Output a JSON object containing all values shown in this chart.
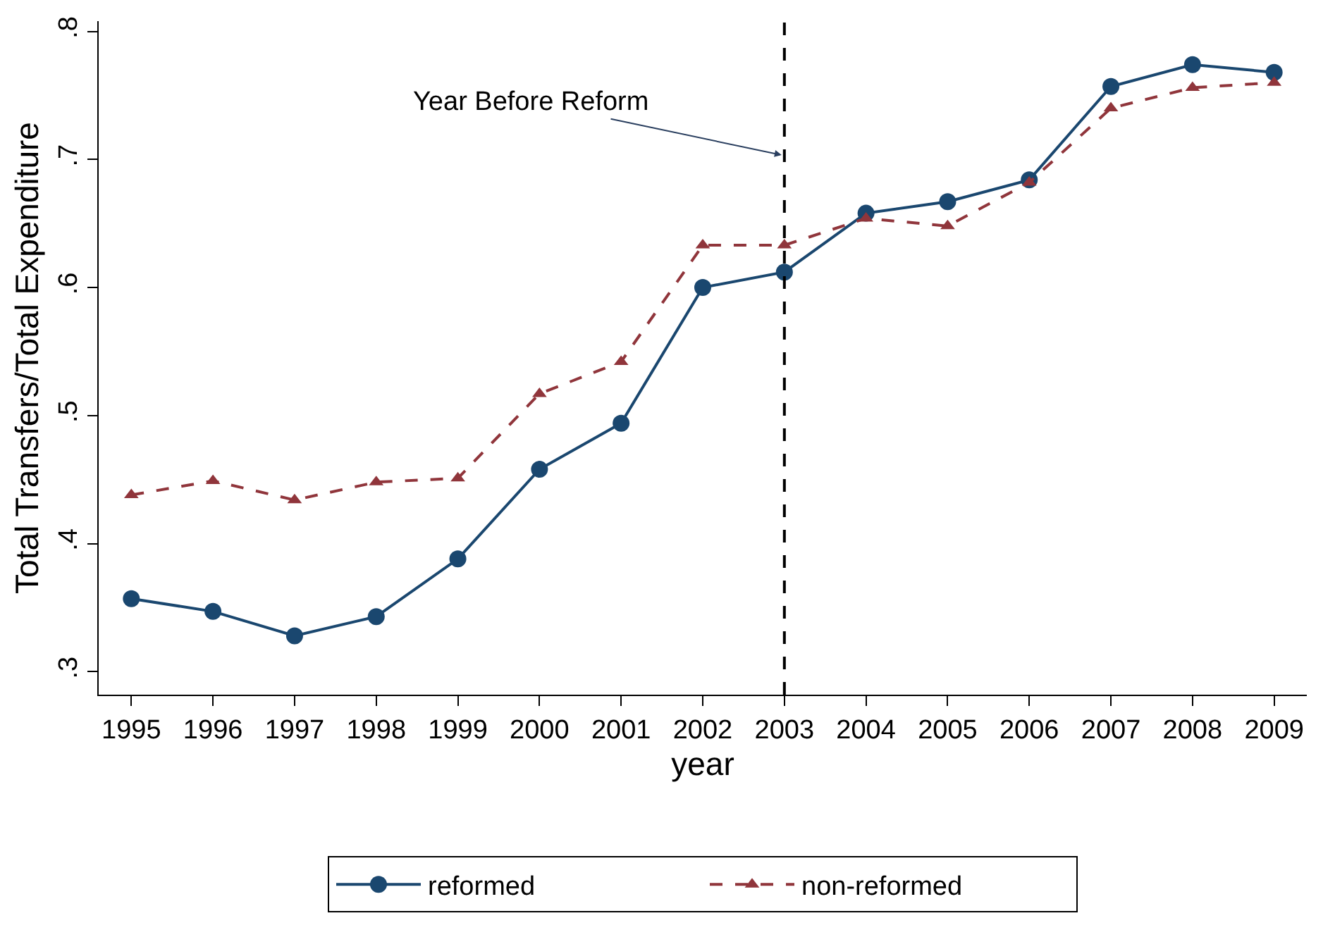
{
  "chart_data": {
    "type": "line",
    "xlabel": "year",
    "ylabel": "Total Transfers/Total Expenditure",
    "x": [
      1995,
      1996,
      1997,
      1998,
      1999,
      2000,
      2001,
      2002,
      2003,
      2004,
      2005,
      2006,
      2007,
      2008,
      2009
    ],
    "series": [
      {
        "name": "reformed",
        "color": "#1a476f",
        "marker": "circle",
        "line_style": "solid",
        "values": [
          0.357,
          0.347,
          0.328,
          0.343,
          0.388,
          0.458,
          0.494,
          0.6,
          0.612,
          0.658,
          0.667,
          0.684,
          0.757,
          0.774,
          0.768
        ]
      },
      {
        "name": "non-reformed",
        "color": "#90353b",
        "marker": "triangle",
        "line_style": "dashed",
        "values": [
          0.438,
          0.449,
          0.434,
          0.448,
          0.451,
          0.517,
          0.542,
          0.633,
          0.633,
          0.654,
          0.648,
          0.682,
          0.74,
          0.756,
          0.76
        ]
      }
    ],
    "xlim": [
      1994.6,
      2009.4
    ],
    "xticks": [
      1995,
      1996,
      1997,
      1998,
      1999,
      2000,
      2001,
      2002,
      2003,
      2004,
      2005,
      2006,
      2007,
      2008,
      2009
    ],
    "ylim": [
      0.282,
      0.808
    ],
    "yticks": [
      {
        "value": 0.3,
        "label": ".3"
      },
      {
        "value": 0.4,
        "label": ".4"
      },
      {
        "value": 0.5,
        "label": ".5"
      },
      {
        "value": 0.6,
        "label": ".6"
      },
      {
        "value": 0.7,
        "label": ".7"
      },
      {
        "value": 0.8,
        "label": ".8"
      }
    ],
    "ref_lines": [
      {
        "axis": "x",
        "value": 2003,
        "color": "#000000",
        "line_style": "dashed"
      }
    ],
    "annotations": [
      {
        "text": "Year Before Reform",
        "x": 2003,
        "y": 0.703
      }
    ],
    "legend": "bottom"
  }
}
